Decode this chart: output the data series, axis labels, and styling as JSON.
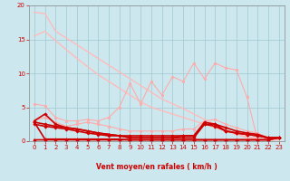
{
  "background_color": "#cce8ee",
  "grid_color": "#a0c8d0",
  "xlabel": "Vent moyen/en rafales ( km/h )",
  "xlim": [
    -0.5,
    23.5
  ],
  "ylim": [
    0,
    20
  ],
  "yticks": [
    0,
    5,
    10,
    15,
    20
  ],
  "xticks": [
    0,
    1,
    2,
    3,
    4,
    5,
    6,
    7,
    8,
    9,
    10,
    11,
    12,
    13,
    14,
    15,
    16,
    17,
    18,
    19,
    20,
    21,
    22,
    23
  ],
  "lines": [
    {
      "x": [
        0,
        1,
        2,
        3,
        4,
        5,
        6,
        7,
        8,
        9,
        10,
        11,
        12,
        13,
        14,
        15,
        16,
        17,
        18,
        19,
        20,
        21,
        22,
        23
      ],
      "y": [
        19.0,
        18.8,
        16.2,
        15.2,
        14.2,
        13.2,
        12.2,
        11.2,
        10.2,
        9.2,
        8.2,
        7.2,
        6.2,
        5.5,
        4.8,
        4.0,
        3.2,
        2.5,
        1.8,
        1.0,
        0.5,
        0.3,
        0.2,
        0.2
      ],
      "color": "#ffbbbb",
      "linewidth": 1.0,
      "marker": null
    },
    {
      "x": [
        0,
        1,
        2,
        3,
        4,
        5,
        6,
        7,
        8,
        9,
        10,
        11,
        12,
        13,
        14,
        15,
        16,
        17,
        18,
        19,
        20,
        21,
        22,
        23
      ],
      "y": [
        15.5,
        16.2,
        14.8,
        13.5,
        12.2,
        11.0,
        9.8,
        8.8,
        7.8,
        6.8,
        5.8,
        5.0,
        4.5,
        4.0,
        3.5,
        3.0,
        2.5,
        2.0,
        1.5,
        1.0,
        0.7,
        0.4,
        0.2,
        0.2
      ],
      "color": "#ffbbbb",
      "linewidth": 1.0,
      "marker": null
    },
    {
      "x": [
        0,
        1,
        2,
        3,
        4,
        5,
        6,
        7,
        8,
        9,
        10,
        11,
        12,
        13,
        14,
        15,
        16,
        17,
        18,
        19,
        20,
        21,
        22,
        23
      ],
      "y": [
        5.5,
        5.2,
        3.5,
        3.0,
        3.0,
        3.2,
        3.0,
        3.5,
        5.0,
        8.5,
        5.5,
        8.8,
        6.8,
        9.5,
        8.8,
        11.5,
        9.2,
        11.5,
        10.8,
        10.5,
        6.5,
        0.2,
        0.5,
        0.5
      ],
      "color": "#ffaaaa",
      "linewidth": 0.8,
      "marker": "o",
      "markersize": 2.0
    },
    {
      "x": [
        0,
        1,
        2,
        3,
        4,
        5,
        6,
        7,
        8,
        9,
        10,
        11,
        12,
        13,
        14,
        15,
        16,
        17,
        18,
        19,
        20,
        21,
        22,
        23
      ],
      "y": [
        3.0,
        3.5,
        2.8,
        2.2,
        2.5,
        2.8,
        2.5,
        2.2,
        1.8,
        1.5,
        1.5,
        1.5,
        1.5,
        1.5,
        1.8,
        1.8,
        3.0,
        3.2,
        2.5,
        2.0,
        1.5,
        1.2,
        0.5,
        0.5
      ],
      "color": "#ffaaaa",
      "linewidth": 0.8,
      "marker": "o",
      "markersize": 2.0
    },
    {
      "x": [
        0,
        1,
        2,
        3,
        4,
        5,
        6,
        7,
        8,
        9,
        10,
        11,
        12,
        13,
        14,
        15,
        16,
        17,
        18,
        19,
        20,
        21,
        22,
        23
      ],
      "y": [
        3.0,
        4.0,
        2.5,
        2.0,
        1.8,
        1.5,
        1.2,
        1.0,
        0.8,
        0.5,
        0.5,
        0.5,
        0.5,
        0.5,
        0.8,
        0.8,
        2.8,
        2.5,
        1.5,
        1.2,
        1.0,
        0.8,
        0.5,
        0.5
      ],
      "color": "#cc0000",
      "linewidth": 1.2,
      "marker": "D",
      "markersize": 1.8
    },
    {
      "x": [
        0,
        1,
        2,
        3,
        4,
        5,
        6,
        7,
        8,
        9,
        10,
        11,
        12,
        13,
        14,
        15,
        16,
        17,
        18,
        19,
        20,
        21,
        22,
        23
      ],
      "y": [
        2.8,
        2.5,
        2.2,
        2.0,
        1.8,
        1.5,
        1.2,
        1.0,
        0.8,
        0.5,
        0.5,
        0.5,
        0.5,
        0.5,
        0.5,
        0.5,
        2.5,
        2.2,
        1.5,
        1.2,
        1.0,
        0.8,
        0.5,
        0.5
      ],
      "color": "#cc0000",
      "linewidth": 1.2,
      "marker": "D",
      "markersize": 1.8
    },
    {
      "x": [
        0,
        1,
        2,
        3,
        4,
        5,
        6,
        7,
        8,
        9,
        10,
        11,
        12,
        13,
        14,
        15,
        16,
        17,
        18,
        19,
        20,
        21,
        22,
        23
      ],
      "y": [
        2.8,
        0.3,
        0.3,
        0.3,
        0.3,
        0.3,
        0.3,
        0.3,
        0.3,
        0.2,
        0.2,
        0.2,
        0.2,
        0.2,
        0.2,
        0.2,
        0.2,
        0.2,
        0.2,
        0.2,
        0.2,
        0.2,
        0.2,
        0.5
      ],
      "color": "#cc0000",
      "linewidth": 1.2,
      "marker": "D",
      "markersize": 1.8
    },
    {
      "x": [
        0,
        1,
        2,
        3,
        4,
        5,
        6,
        7,
        8,
        9,
        10,
        11,
        12,
        13,
        14,
        15,
        16,
        17,
        18,
        19,
        20,
        21,
        22,
        23
      ],
      "y": [
        0.2,
        0.2,
        0.2,
        0.2,
        0.2,
        0.2,
        0.2,
        0.2,
        0.2,
        0.2,
        0.2,
        0.2,
        0.2,
        0.2,
        0.2,
        0.2,
        0.2,
        0.2,
        0.2,
        0.2,
        0.2,
        0.2,
        0.2,
        0.5
      ],
      "color": "#cc0000",
      "linewidth": 1.2,
      "marker": "D",
      "markersize": 1.8
    },
    {
      "x": [
        0,
        1,
        2,
        3,
        4,
        5,
        6,
        7,
        8,
        9,
        10,
        11,
        12,
        13,
        14,
        15,
        16,
        17,
        18,
        19,
        20,
        21,
        22,
        23
      ],
      "y": [
        2.5,
        2.2,
        2.0,
        1.8,
        1.5,
        1.2,
        1.0,
        0.8,
        0.8,
        0.8,
        0.8,
        0.8,
        0.8,
        0.8,
        0.8,
        0.8,
        2.5,
        2.5,
        2.0,
        1.5,
        1.2,
        1.0,
        0.5,
        0.5
      ],
      "color": "#cc0000",
      "linewidth": 1.2,
      "marker": "D",
      "markersize": 1.8
    }
  ]
}
